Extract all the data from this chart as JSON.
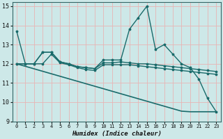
{
  "title": "",
  "xlabel": "Humidex (Indice chaleur)",
  "ylabel": "",
  "bg_color": "#cde8e8",
  "grid_color": "#b0d4d4",
  "line_color": "#1a6b6b",
  "xlim": [
    -0.5,
    23.5
  ],
  "ylim": [
    9,
    15.2
  ],
  "yticks": [
    9,
    10,
    11,
    12,
    13,
    14,
    15
  ],
  "xticks": [
    0,
    1,
    2,
    3,
    4,
    5,
    6,
    7,
    8,
    9,
    10,
    11,
    12,
    13,
    14,
    15,
    16,
    17,
    18,
    19,
    20,
    21,
    22,
    23
  ],
  "series": [
    {
      "x": [
        0,
        1,
        2,
        3,
        4,
        5,
        6,
        7,
        8,
        9,
        10,
        11,
        12,
        13,
        14,
        15,
        16,
        17,
        18,
        19,
        20,
        21,
        22,
        23
      ],
      "y": [
        13.7,
        12.0,
        12.0,
        12.6,
        12.6,
        12.1,
        12.0,
        11.85,
        11.8,
        11.75,
        12.2,
        12.2,
        12.2,
        13.8,
        14.4,
        15.0,
        12.75,
        13.0,
        12.5,
        12.0,
        11.8,
        11.2,
        10.2,
        9.5
      ],
      "marker": "*",
      "lw": 1.0
    },
    {
      "x": [
        0,
        1,
        2,
        3,
        4,
        5,
        6,
        7,
        8,
        9,
        10,
        11,
        12,
        13,
        14,
        15,
        16,
        17,
        18,
        19,
        20,
        21,
        22,
        23
      ],
      "y": [
        12.0,
        12.0,
        12.0,
        12.6,
        12.6,
        12.1,
        12.0,
        11.85,
        11.8,
        11.75,
        12.05,
        12.05,
        12.1,
        12.05,
        12.0,
        12.0,
        11.95,
        11.9,
        11.85,
        11.8,
        11.75,
        11.7,
        11.65,
        11.6
      ],
      "marker": "*",
      "lw": 1.0
    },
    {
      "x": [
        0,
        1,
        2,
        3,
        4,
        5,
        6,
        7,
        8,
        9,
        10,
        11,
        12,
        13,
        14,
        15,
        16,
        17,
        18,
        19,
        20,
        21,
        22,
        23
      ],
      "y": [
        12.0,
        12.0,
        12.0,
        12.0,
        12.5,
        12.05,
        11.95,
        11.8,
        11.7,
        11.65,
        11.95,
        11.95,
        11.95,
        11.95,
        11.9,
        11.85,
        11.8,
        11.75,
        11.7,
        11.65,
        11.6,
        11.55,
        11.5,
        11.45
      ],
      "marker": "*",
      "lw": 1.0
    },
    {
      "x": [
        0,
        1,
        2,
        3,
        4,
        5,
        6,
        7,
        8,
        9,
        10,
        11,
        12,
        13,
        14,
        15,
        16,
        17,
        18,
        19,
        20,
        21,
        22,
        23
      ],
      "y": [
        12.0,
        11.87,
        11.74,
        11.61,
        11.48,
        11.35,
        11.22,
        11.09,
        10.96,
        10.83,
        10.7,
        10.57,
        10.44,
        10.31,
        10.18,
        10.05,
        9.92,
        9.79,
        9.66,
        9.53,
        9.5,
        9.5,
        9.5,
        9.5
      ],
      "marker": null,
      "lw": 1.2
    }
  ]
}
